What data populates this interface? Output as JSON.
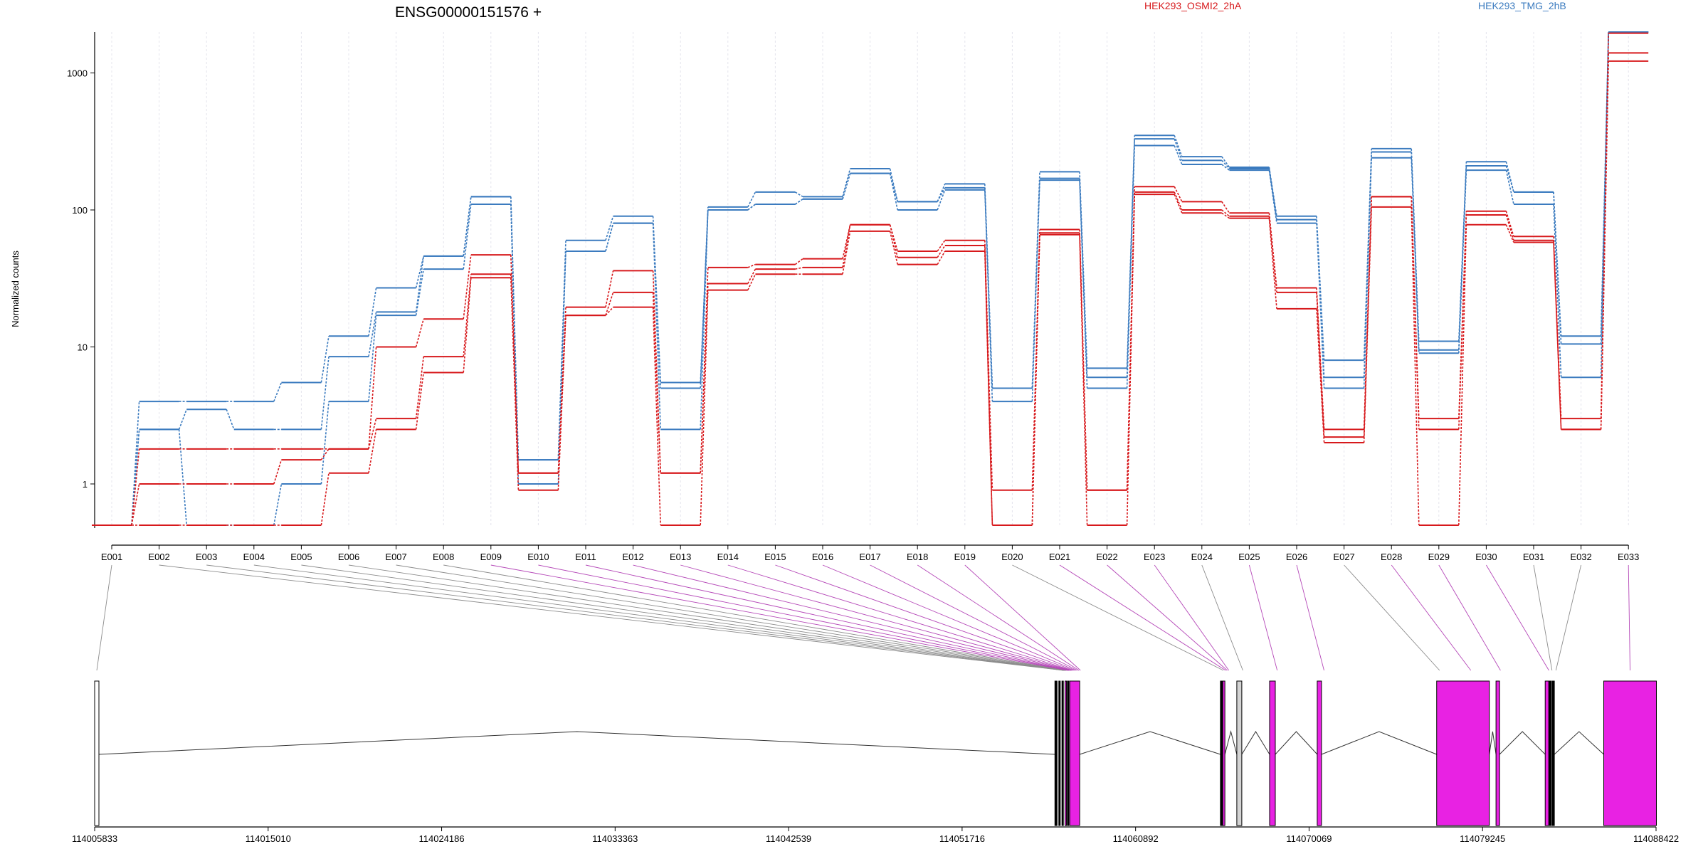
{
  "chart_data": {
    "type": "line",
    "title": "ENSG00000151576 +",
    "ylabel": "Normalized counts",
    "yscale": "log",
    "ylim": [
      0.5,
      2500
    ],
    "y_ticks": [
      1,
      10,
      100,
      1000
    ],
    "y_tick_labels": [
      "1",
      "10",
      "100",
      "1000"
    ],
    "categories": [
      "E001",
      "E002",
      "E003",
      "E004",
      "E005",
      "E006",
      "E007",
      "E008",
      "E009",
      "E010",
      "E011",
      "E012",
      "E013",
      "E014",
      "E015",
      "E016",
      "E017",
      "E018",
      "E019",
      "E020",
      "E021",
      "E022",
      "E023",
      "E024",
      "E025",
      "E026",
      "E027",
      "E028",
      "E029",
      "E030",
      "E031",
      "E032",
      "E033"
    ],
    "legend": [
      {
        "name": "HEK293_OSMI2_2hA",
        "color": "#d7191c",
        "position": "top"
      },
      {
        "name": "HEK293_TMG_2hB",
        "color": "#3b7bbf",
        "position": "top-right"
      }
    ],
    "series": [
      {
        "group": "HEK293_TMG_2hB",
        "color": "#3b7bbf",
        "values": [
          0.5,
          4,
          4,
          4,
          5.5,
          12,
          27,
          46,
          125,
          1.5,
          60,
          90,
          5.5,
          105,
          135,
          125,
          200,
          115,
          155,
          5,
          190,
          7,
          350,
          245,
          205,
          90,
          8,
          280,
          11,
          225,
          135,
          12,
          2200
        ]
      },
      {
        "group": "HEK293_TMG_2hB",
        "color": "#3b7bbf",
        "values": [
          0.5,
          2.5,
          3.5,
          2.5,
          2.5,
          8.5,
          18,
          46,
          125,
          1.5,
          50,
          80,
          5,
          100,
          110,
          120,
          185,
          115,
          145,
          5,
          170,
          6,
          330,
          230,
          200,
          85,
          6,
          265,
          9.5,
          210,
          135,
          10.5,
          2100
        ]
      },
      {
        "group": "HEK293_TMG_2hB",
        "color": "#3b7bbf",
        "values": [
          0.5,
          2.5,
          0.5,
          0.5,
          1,
          4,
          17,
          37,
          110,
          1,
          50,
          80,
          2.5,
          100,
          110,
          120,
          185,
          100,
          140,
          4,
          165,
          5,
          295,
          215,
          195,
          80,
          5,
          240,
          9,
          195,
          110,
          6,
          2050
        ]
      },
      {
        "group": "HEK293_OSMI2_2hA",
        "color": "#d7191c",
        "values": [
          0.5,
          1.8,
          1.8,
          1.8,
          1.8,
          1.8,
          10,
          16,
          47,
          1.2,
          19.5,
          36,
          1.2,
          38,
          40,
          44,
          78,
          50,
          60,
          0.9,
          72,
          0.9,
          148,
          115,
          95,
          27,
          2.5,
          125,
          3,
          98,
          64,
          3,
          1950
        ]
      },
      {
        "group": "HEK293_OSMI2_2hA",
        "color": "#d7191c",
        "values": [
          0.5,
          1,
          1,
          1,
          1.5,
          1.8,
          3,
          8.5,
          34,
          1.2,
          17,
          25,
          1.2,
          29,
          37,
          38,
          78,
          45,
          55,
          0.5,
          68,
          0.9,
          135,
          100,
          90,
          25,
          2.2,
          125,
          2.5,
          92,
          60,
          2.5,
          1400
        ]
      },
      {
        "group": "HEK293_OSMI2_2hA",
        "color": "#d7191c",
        "values": [
          0.5,
          0.5,
          0.5,
          0.5,
          0.5,
          1.2,
          2.5,
          6.5,
          32,
          0.9,
          17,
          19.5,
          0.5,
          26,
          34,
          34,
          70,
          40,
          50,
          0.5,
          66,
          0.5,
          130,
          95,
          87,
          19,
          2,
          105,
          0.5,
          78,
          58,
          2.5,
          1220
        ]
      }
    ],
    "gene_track": {
      "x_tick_labels": [
        "114005833",
        "114015010",
        "114024186",
        "114033363",
        "114042539",
        "114051716",
        "114060892",
        "114070069",
        "114079245",
        "114088422"
      ],
      "exon_colors": {
        "differential": "#e822e3",
        "normal": "#d3d3d3",
        "outline": "#000000"
      }
    }
  }
}
